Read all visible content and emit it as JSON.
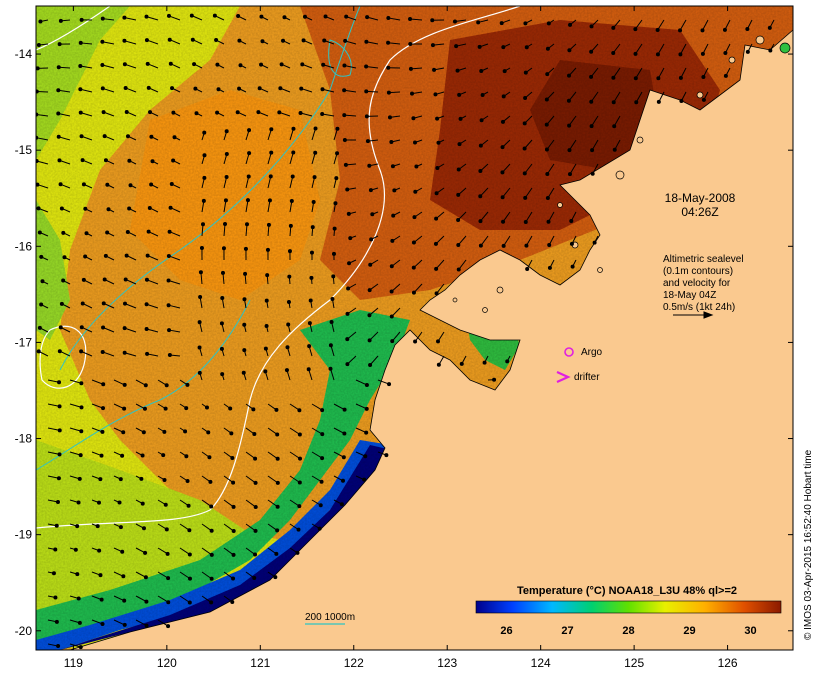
{
  "map": {
    "lon_range": [
      118.6,
      126.7
    ],
    "lat_range": [
      -20.2,
      -13.5
    ],
    "lon_ticks": [
      "119",
      "120",
      "121",
      "122",
      "123",
      "124",
      "125",
      "126"
    ],
    "lat_ticks": [
      "-14",
      "-15",
      "-16",
      "-17",
      "-18",
      "-19",
      "-20"
    ],
    "timestamp_line1": "18-May-2008",
    "timestamp_line2": "04:26Z",
    "altimetry_note": [
      "Altimetric sealevel",
      "(0.1m contours)",
      "and velocity for",
      "18-May 04Z",
      "0.5m/s (1kt 24h)"
    ],
    "legend_argo": "Argo",
    "legend_drifter": "drifter",
    "depth_legend": "200  1000m",
    "colorbar": {
      "title": "Temperature (°C) NOAA18_L3U 48% ql>=2",
      "ticks": [
        "26",
        "27",
        "28",
        "29",
        "30"
      ],
      "range": [
        25.5,
        30.5
      ]
    },
    "credit": "© IMOS 03-Apr-2015 16:52:40 Hobart time",
    "colors": {
      "land": "#fac98f",
      "cold": "#00008b",
      "mid": "#00c853",
      "warm": "#ffd600",
      "hot": "#8b1a00",
      "velocity": "#000000",
      "contour_white": "#ffffff",
      "contour_depth": "#2ec4c4",
      "argo": "#e020e0",
      "drifter": "#e020e0"
    }
  }
}
